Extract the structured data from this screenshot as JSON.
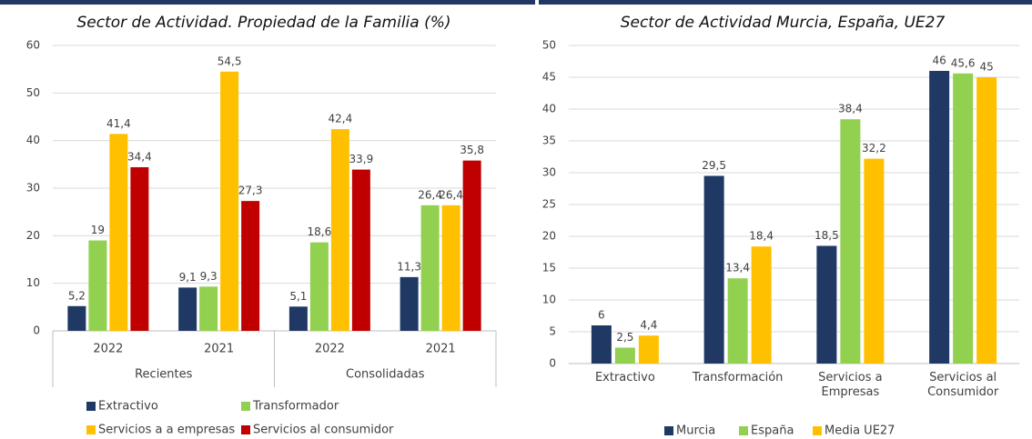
{
  "chart_data": [
    {
      "type": "bar",
      "title": "Sector de Actividad. Propiedad de la Familia (%)",
      "categories": [
        "2022",
        "2021",
        "2022",
        "2021"
      ],
      "category_groups": [
        "Recientes",
        "Consolidadas"
      ],
      "series": [
        {
          "name": "Extractivo",
          "color": "#1f3864",
          "values": [
            5.2,
            9.1,
            5.1,
            11.3
          ],
          "value_labels": [
            "5,2",
            "9,1",
            "5,1",
            "11,3"
          ]
        },
        {
          "name": "Transformador",
          "color": "#92d050",
          "values": [
            19,
            9.3,
            18.6,
            26.4
          ],
          "value_labels": [
            "19",
            "9,3",
            "18,6",
            "26,4"
          ]
        },
        {
          "name": "Servicios a a empresas",
          "color": "#ffc000",
          "values": [
            41.4,
            54.5,
            42.4,
            26.4
          ],
          "value_labels": [
            "41,4",
            "54,5",
            "42,4",
            "26,4"
          ]
        },
        {
          "name": "Servicios al consumidor",
          "color": "#c00000",
          "values": [
            34.4,
            27.3,
            33.9,
            35.8
          ],
          "value_labels": [
            "34,4",
            "27,3",
            "33,9",
            "35,8"
          ]
        }
      ],
      "ylim": [
        0,
        60
      ],
      "yticks": [
        0,
        10,
        20,
        30,
        40,
        50,
        60
      ],
      "grid": true,
      "legend": "bottom"
    },
    {
      "type": "bar",
      "title": "Sector de Actividad Murcia, España, UE27",
      "categories": [
        "Extractivo",
        "Transformación",
        "Servicios a Empresas",
        "Servicios al Consumidor"
      ],
      "series": [
        {
          "name": "Murcia",
          "color": "#1f3864",
          "values": [
            6,
            29.5,
            18.5,
            46
          ],
          "value_labels": [
            "6",
            "29,5",
            "18,5",
            "46"
          ]
        },
        {
          "name": "España",
          "color": "#92d050",
          "values": [
            2.5,
            13.4,
            38.4,
            45.6
          ],
          "value_labels": [
            "2,5",
            "13,4",
            "38,4",
            "45,6"
          ]
        },
        {
          "name": "Media UE27",
          "color": "#ffc000",
          "values": [
            4.4,
            18.4,
            32.2,
            45
          ],
          "value_labels": [
            "4,4",
            "18,4",
            "32,2",
            "45"
          ]
        }
      ],
      "ylim": [
        0,
        50
      ],
      "yticks": [
        0,
        5,
        10,
        15,
        20,
        25,
        30,
        35,
        40,
        45,
        50
      ],
      "grid": true,
      "legend": "bottom"
    }
  ]
}
